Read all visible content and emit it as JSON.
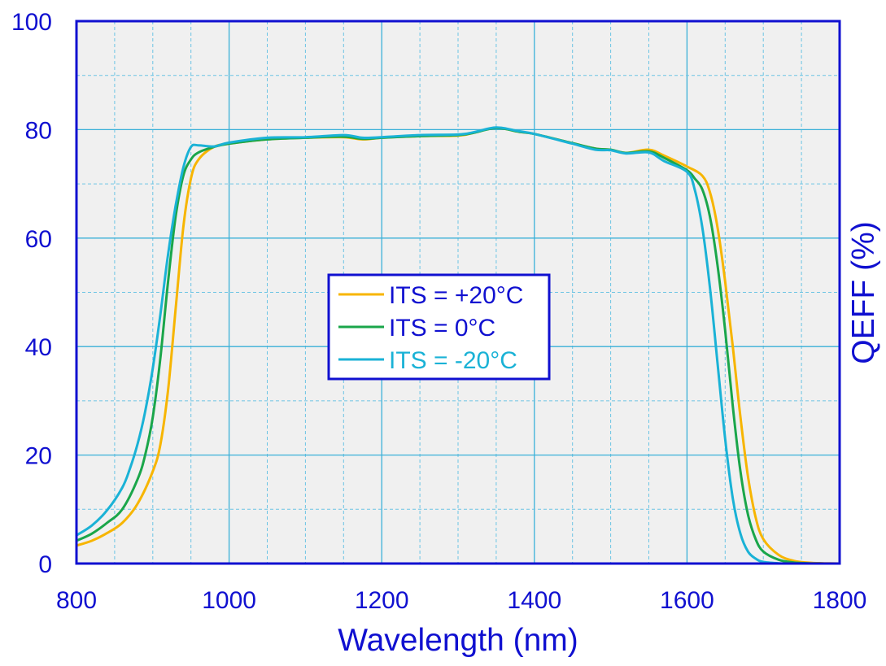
{
  "chart_data": {
    "type": "line",
    "title": "",
    "xlabel": "Wavelength (nm)",
    "ylabel": "QEFF (%)",
    "xlim": [
      800,
      1800
    ],
    "ylim": [
      0,
      100
    ],
    "x_ticks": [
      800,
      1000,
      1200,
      1400,
      1600,
      1800
    ],
    "y_ticks": [
      0,
      20,
      40,
      60,
      80,
      100
    ],
    "x_minor_step": 50,
    "y_minor_step": 10,
    "grid": true,
    "legend_position": "center",
    "colors": {
      "axis": "#1010d0",
      "text": "#1010d0",
      "plot_background": "#f0f0f0",
      "grid_major": "#3ab0d8",
      "grid_minor": "#6cc4e4"
    },
    "series": [
      {
        "name": "ITS = +20°C",
        "color": "#f7b500",
        "x": [
          800,
          820,
          840,
          860,
          880,
          900,
          910,
          920,
          930,
          940,
          950,
          960,
          980,
          1000,
          1050,
          1100,
          1150,
          1175,
          1200,
          1250,
          1300,
          1320,
          1350,
          1380,
          1400,
          1450,
          1480,
          1500,
          1520,
          1550,
          1570,
          1600,
          1620,
          1630,
          1640,
          1650,
          1660,
          1670,
          1680,
          1690,
          1700,
          1720,
          1740,
          1760,
          1780,
          1800
        ],
        "y": [
          3.3,
          4.2,
          5.6,
          7.5,
          11,
          17,
          22,
          32,
          47,
          62,
          71,
          74.5,
          76.8,
          77.4,
          78.2,
          78.5,
          78.6,
          78.2,
          78.5,
          78.8,
          78.9,
          79.4,
          80.3,
          79.6,
          79.2,
          77.5,
          76.5,
          76.3,
          75.7,
          76.3,
          75.2,
          73.2,
          71.5,
          68.5,
          62,
          52,
          40,
          27,
          16,
          8.5,
          4.5,
          1.6,
          0.5,
          0.15,
          0.05,
          0
        ]
      },
      {
        "name": "ITS = 0°C",
        "color": "#1aa64a",
        "x": [
          800,
          820,
          840,
          860,
          880,
          890,
          900,
          910,
          920,
          930,
          940,
          950,
          960,
          980,
          1000,
          1050,
          1100,
          1150,
          1175,
          1200,
          1250,
          1300,
          1320,
          1350,
          1380,
          1400,
          1450,
          1480,
          1500,
          1520,
          1550,
          1570,
          1600,
          1610,
          1620,
          1630,
          1640,
          1650,
          1660,
          1670,
          1680,
          1690,
          1700,
          1720,
          1740,
          1760,
          1780,
          1800
        ],
        "y": [
          4.2,
          5.5,
          7.5,
          10,
          15.5,
          20,
          27,
          38,
          52,
          64,
          71.5,
          74.5,
          75.8,
          76.8,
          77.4,
          78.2,
          78.5,
          78.7,
          78.3,
          78.5,
          78.8,
          79,
          79.4,
          80.3,
          79.6,
          79.2,
          77.5,
          76.5,
          76.3,
          75.7,
          76,
          74.8,
          72.5,
          71,
          69,
          64,
          55,
          43,
          29,
          17,
          9,
          4.5,
          2.2,
          0.7,
          0.2,
          0.05,
          0,
          0
        ]
      },
      {
        "name": "ITS = -20°C",
        "color": "#1ab2d6",
        "x": [
          800,
          820,
          840,
          860,
          870,
          880,
          890,
          900,
          910,
          920,
          930,
          940,
          950,
          960,
          980,
          1000,
          1050,
          1100,
          1150,
          1175,
          1200,
          1250,
          1300,
          1320,
          1350,
          1380,
          1400,
          1450,
          1480,
          1500,
          1520,
          1550,
          1570,
          1600,
          1610,
          1620,
          1630,
          1640,
          1650,
          1660,
          1670,
          1680,
          1690,
          1700,
          1720,
          1740,
          1760,
          1780,
          1800
        ],
        "y": [
          5.2,
          7,
          9.8,
          14,
          17.5,
          22,
          28,
          36,
          46,
          57,
          66,
          73,
          76.8,
          77.1,
          76.9,
          77.6,
          78.5,
          78.6,
          79,
          78.5,
          78.6,
          79,
          79.1,
          79.5,
          80.4,
          79.7,
          79.2,
          77.4,
          76.3,
          76.2,
          75.6,
          75.8,
          74.2,
          72.2,
          69,
          62,
          51,
          37,
          23,
          12,
          5.5,
          2.2,
          0.9,
          0.3,
          0.05,
          0,
          0,
          0,
          0
        ]
      }
    ]
  }
}
